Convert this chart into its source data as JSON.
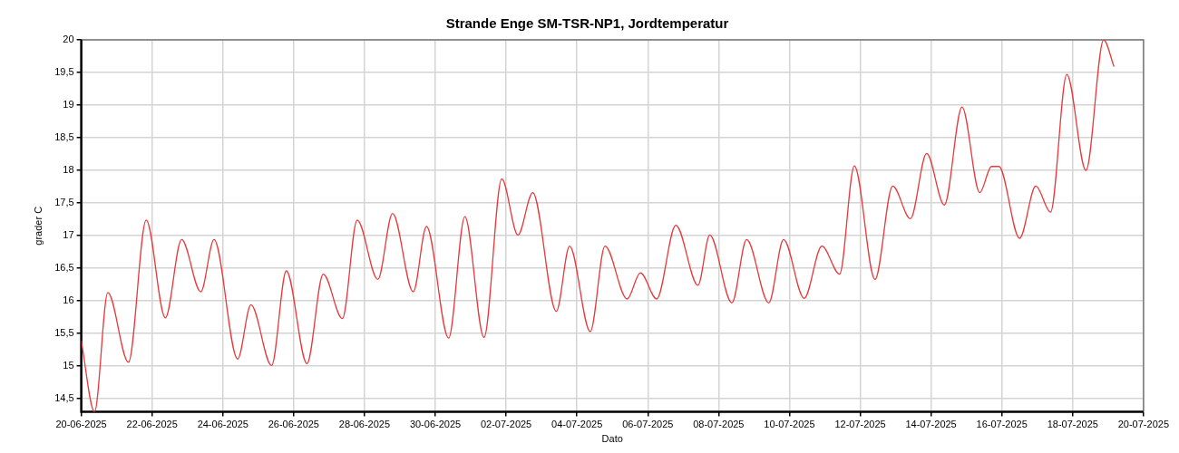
{
  "chart_data": {
    "type": "line",
    "title": "Strande Enge SM-TSR-NP1, Jordtemperatur",
    "xlabel": "Dato",
    "ylabel": "grader C",
    "x": [
      "2025-06-20T00:00",
      "2025-06-20T09:00",
      "2025-06-20T18:00",
      "2025-06-21T08:00",
      "2025-06-21T20:00",
      "2025-06-22T09:00",
      "2025-06-22T20:00",
      "2025-06-23T09:00",
      "2025-06-23T18:00",
      "2025-06-24T10:00",
      "2025-06-24T19:00",
      "2025-06-25T09:00",
      "2025-06-25T19:00",
      "2025-06-26T09:00",
      "2025-06-26T20:00",
      "2025-06-27T09:00",
      "2025-06-27T19:00",
      "2025-06-28T09:00",
      "2025-06-28T19:00",
      "2025-06-29T09:00",
      "2025-06-29T18:00",
      "2025-06-30T09:00",
      "2025-06-30T20:00",
      "2025-07-01T09:00",
      "2025-07-01T21:00",
      "2025-07-02T08:00",
      "2025-07-02T18:00",
      "2025-07-03T10:00",
      "2025-07-03T19:00",
      "2025-07-04T09:00",
      "2025-07-04T19:00",
      "2025-07-05T10:00",
      "2025-07-05T19:00",
      "2025-07-06T06:00",
      "2025-07-06T19:00",
      "2025-07-07T10:00",
      "2025-07-07T18:00",
      "2025-07-08T09:00",
      "2025-07-08T19:00",
      "2025-07-09T10:00",
      "2025-07-09T20:00",
      "2025-07-10T10:00",
      "2025-07-10T22:00",
      "2025-07-11T10:00",
      "2025-07-11T20:00",
      "2025-07-12T10:00",
      "2025-07-12T22:00",
      "2025-07-13T10:00",
      "2025-07-13T21:00",
      "2025-07-14T09:00",
      "2025-07-14T21:00",
      "2025-07-15T09:00",
      "2025-07-15T17:00",
      "2025-07-15T22:00",
      "2025-07-16T12:00",
      "2025-07-16T23:00",
      "2025-07-17T09:00",
      "2025-07-17T20:00",
      "2025-07-18T09:00",
      "2025-07-18T21:00",
      "2025-07-19T04:00"
    ],
    "series": [
      {
        "color": "#e8393c",
        "values": [
          15.39,
          14.3,
          16.13,
          15.06,
          17.24,
          15.74,
          16.94,
          16.14,
          16.94,
          15.11,
          15.94,
          15.01,
          16.46,
          15.04,
          16.41,
          15.73,
          17.24,
          16.33,
          17.34,
          16.14,
          17.14,
          15.43,
          17.29,
          15.44,
          17.87,
          17.01,
          17.66,
          15.84,
          16.84,
          15.53,
          16.84,
          16.03,
          16.43,
          16.03,
          17.16,
          16.24,
          17.01,
          15.97,
          16.94,
          15.97,
          16.94,
          16.04,
          16.84,
          16.41,
          18.07,
          16.33,
          17.76,
          17.26,
          18.26,
          17.47,
          18.97,
          17.66,
          18.06,
          18.06,
          16.96,
          17.76,
          17.36,
          19.47,
          18.0,
          20.0,
          19.59
        ]
      }
    ],
    "xlim": [
      "2025-06-20",
      "2025-07-20"
    ],
    "xticks": [
      {
        "value": "2025-06-20",
        "label": "20-06-2025"
      },
      {
        "value": "2025-06-22",
        "label": "22-06-2025"
      },
      {
        "value": "2025-06-24",
        "label": "24-06-2025"
      },
      {
        "value": "2025-06-26",
        "label": "26-06-2025"
      },
      {
        "value": "2025-06-28",
        "label": "28-06-2025"
      },
      {
        "value": "2025-06-30",
        "label": "30-06-2025"
      },
      {
        "value": "2025-07-02",
        "label": "02-07-2025"
      },
      {
        "value": "2025-07-04",
        "label": "04-07-2025"
      },
      {
        "value": "2025-07-06",
        "label": "06-07-2025"
      },
      {
        "value": "2025-07-08",
        "label": "08-07-2025"
      },
      {
        "value": "2025-07-10",
        "label": "10-07-2025"
      },
      {
        "value": "2025-07-12",
        "label": "12-07-2025"
      },
      {
        "value": "2025-07-14",
        "label": "14-07-2025"
      },
      {
        "value": "2025-07-16",
        "label": "16-07-2025"
      },
      {
        "value": "2025-07-18",
        "label": "18-07-2025"
      },
      {
        "value": "2025-07-20",
        "label": "20-07-2025"
      }
    ],
    "ylim": [
      14.3,
      20
    ],
    "yticks": [
      {
        "value": 14.5,
        "label": "14,5"
      },
      15,
      {
        "value": 15.5,
        "label": "15,5"
      },
      16,
      {
        "value": 16.5,
        "label": "16,5"
      },
      17,
      {
        "value": 17.5,
        "label": "17,5"
      },
      18,
      {
        "value": 18.5,
        "label": "18,5"
      },
      19,
      {
        "value": 19.5,
        "label": "19,5"
      },
      20
    ],
    "grid": true,
    "legend": false,
    "marker": "none",
    "line_style": "solid"
  }
}
